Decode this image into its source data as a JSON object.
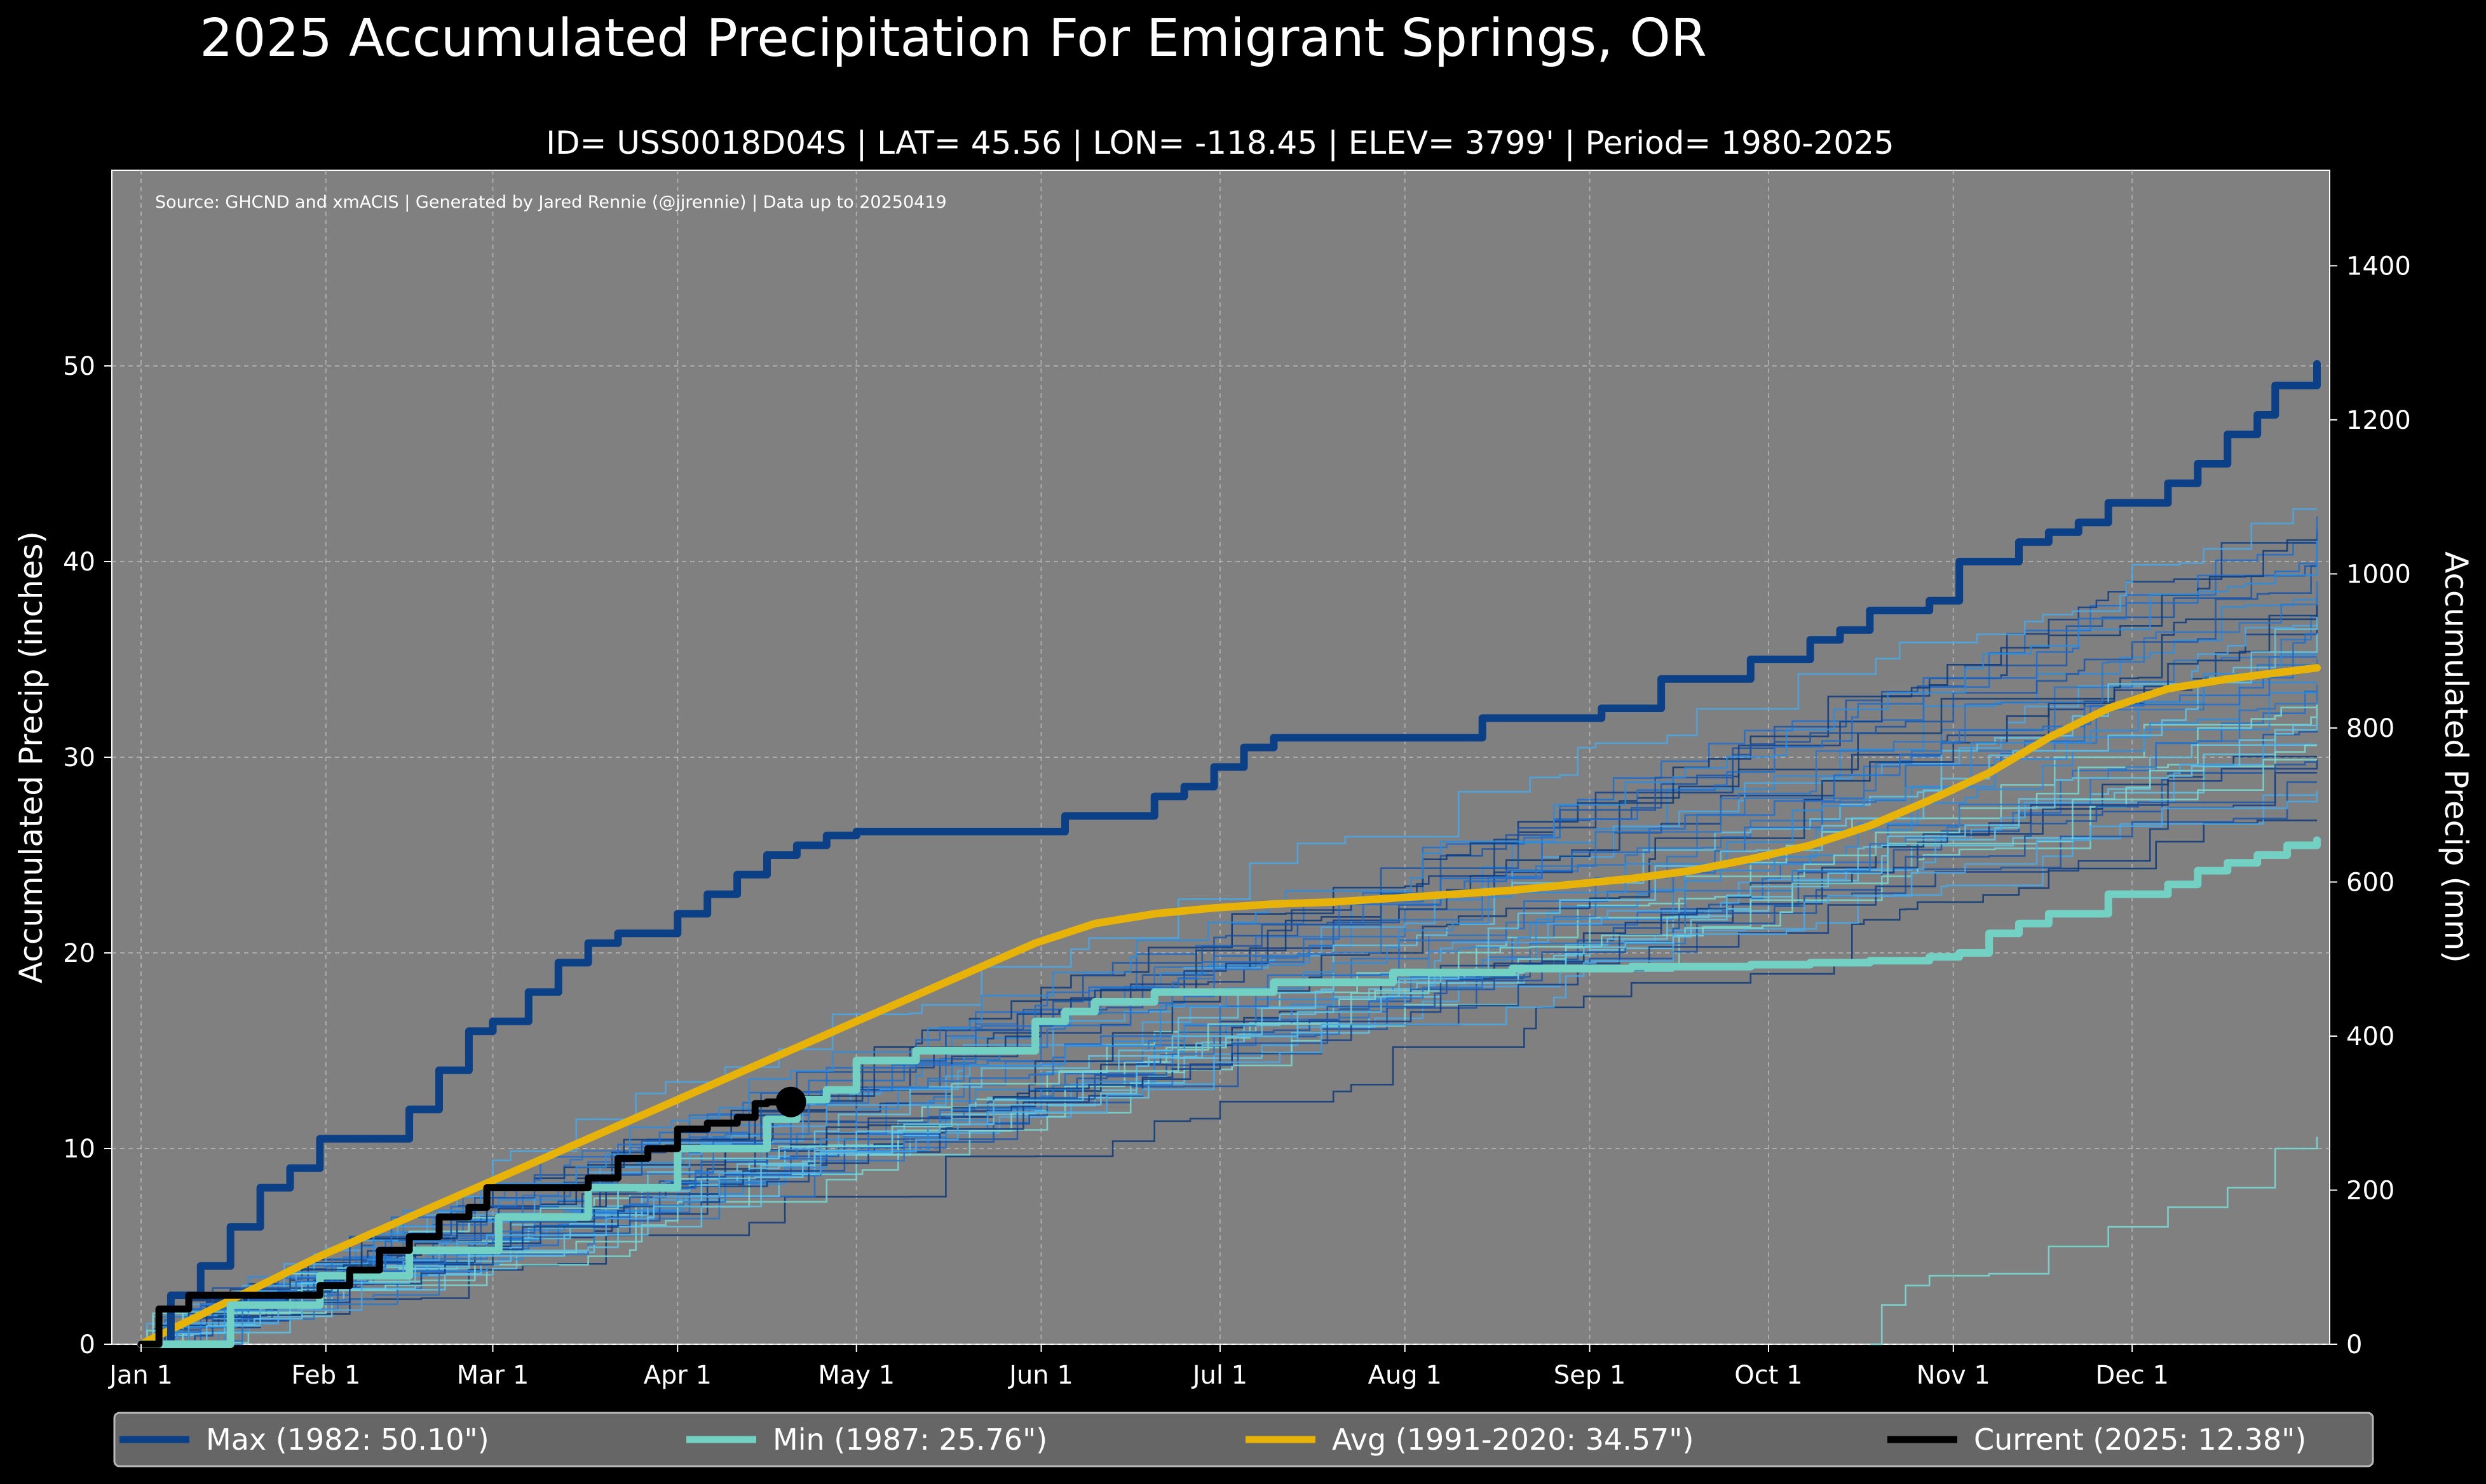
{
  "chart_data": {
    "type": "line",
    "title": "2025 Accumulated Precipitation For Emigrant Springs, OR",
    "subtitle": "ID= USS0018D04S | LAT= 45.56 | LON= -118.45 | ELEV= 3799' | Period= 1980-2025",
    "source_note": "Source: GHCND and xmACIS | Generated by Jared Rennie (@jjrennie) | Data up to 20250419",
    "ylabel": "Accumulated Precip (inches)",
    "ylabel_right": "Accumulated Precip (mm)",
    "ylim": [
      0,
      60
    ],
    "ylim_right_mm": [
      0,
      1524
    ],
    "xlim_day": [
      0,
      365
    ],
    "grid": true,
    "x_ticks": [
      {
        "label": "Jan 1",
        "day": 0
      },
      {
        "label": "Feb 1",
        "day": 31
      },
      {
        "label": "Mar 1",
        "day": 59
      },
      {
        "label": "Apr 1",
        "day": 90
      },
      {
        "label": "May 1",
        "day": 120
      },
      {
        "label": "Jun 1",
        "day": 151
      },
      {
        "label": "Jul 1",
        "day": 181
      },
      {
        "label": "Aug 1",
        "day": 212
      },
      {
        "label": "Sep 1",
        "day": 243
      },
      {
        "label": "Oct 1",
        "day": 273
      },
      {
        "label": "Nov 1",
        "day": 304
      },
      {
        "label": "Dec 1",
        "day": 334
      }
    ],
    "y_ticks": [
      0,
      10,
      20,
      30,
      40,
      50
    ],
    "y_ticks_right": [
      0,
      200,
      400,
      600,
      800,
      1000,
      1200,
      1400
    ],
    "series": [
      {
        "name": "Max (1982:  50.10\")",
        "role": "max",
        "color": "#0b3f86",
        "x": [
          0,
          5,
          10,
          15,
          20,
          25,
          30,
          35,
          40,
          45,
          50,
          55,
          59,
          65,
          70,
          75,
          80,
          85,
          90,
          95,
          100,
          105,
          110,
          115,
          120,
          125,
          130,
          140,
          150,
          155,
          165,
          170,
          175,
          180,
          185,
          190,
          200,
          210,
          220,
          225,
          235,
          245,
          250,
          255,
          260,
          265,
          270,
          275,
          280,
          285,
          290,
          295,
          300,
          305,
          310,
          315,
          320,
          325,
          330,
          335,
          340,
          345,
          350,
          355,
          358,
          365
        ],
        "y": [
          0,
          2.5,
          4,
          6,
          8,
          9,
          10.5,
          10.5,
          10.5,
          12,
          14,
          16,
          16.5,
          18,
          19.5,
          20.5,
          21,
          21,
          22,
          23,
          24,
          25,
          25.5,
          26,
          26.2,
          26.2,
          26.2,
          26.2,
          26.2,
          27,
          27,
          28,
          28.5,
          29.5,
          30.5,
          31,
          31,
          31,
          31,
          32,
          32,
          32.5,
          32.5,
          34,
          34,
          34,
          35,
          35,
          36,
          36.5,
          37.5,
          37.5,
          38,
          40,
          40,
          41,
          41.5,
          42,
          43,
          43,
          44,
          45,
          46.5,
          47.5,
          49,
          50.1
        ]
      },
      {
        "name": "Min (1987:  25.76\")",
        "role": "min",
        "color": "#72d1c3",
        "x": [
          0,
          15,
          30,
          45,
          60,
          75,
          90,
          105,
          110,
          115,
          120,
          130,
          140,
          150,
          155,
          160,
          165,
          170,
          180,
          190,
          200,
          210,
          220,
          230,
          240,
          250,
          260,
          270,
          280,
          290,
          300,
          305,
          310,
          315,
          320,
          330,
          340,
          345,
          350,
          355,
          360,
          365
        ],
        "y": [
          0,
          2,
          3.5,
          4.8,
          6.5,
          8,
          10,
          11.5,
          12.5,
          13,
          14.5,
          15,
          15,
          16.5,
          17,
          17.5,
          17.5,
          18,
          18,
          18.5,
          18.5,
          19,
          19,
          19.2,
          19.2,
          19.3,
          19.3,
          19.4,
          19.5,
          19.6,
          19.8,
          20,
          21,
          21.5,
          22,
          23,
          23.5,
          24.2,
          24.6,
          25,
          25.5,
          25.76
        ]
      },
      {
        "name": "Avg (1991-2020:  34.57\")",
        "role": "avg",
        "color": "#e8b308",
        "x": [
          0,
          30,
          60,
          90,
          120,
          150,
          160,
          170,
          180,
          190,
          200,
          210,
          220,
          230,
          240,
          250,
          260,
          270,
          280,
          290,
          300,
          310,
          320,
          330,
          340,
          350,
          365
        ],
        "y": [
          0,
          4.5,
          8.5,
          12.5,
          16.5,
          20.5,
          21.5,
          22,
          22.3,
          22.5,
          22.6,
          22.8,
          23,
          23.2,
          23.5,
          23.8,
          24.2,
          24.8,
          25.5,
          26.5,
          27.8,
          29.2,
          31,
          32.5,
          33.5,
          34,
          34.57
        ]
      },
      {
        "name": "Current (2025:  12.38\")",
        "role": "current",
        "color": "#000000",
        "x": [
          0,
          3,
          8,
          14,
          20,
          26,
          30,
          35,
          40,
          45,
          50,
          55,
          58,
          60,
          65,
          70,
          75,
          80,
          85,
          90,
          95,
          100,
          103,
          105,
          109
        ],
        "y": [
          0,
          1.8,
          2.5,
          2.5,
          2.5,
          2.5,
          3,
          3.8,
          4.8,
          5.5,
          6.5,
          7,
          8,
          8,
          8,
          8,
          8.5,
          9.5,
          10,
          11,
          11.3,
          11.6,
          12.3,
          12.38,
          12.38
        ]
      }
    ],
    "legend": {
      "placement": "bottom",
      "entries": [
        "Max (1982:  50.10\")",
        "Min (1987:  25.76\")",
        "Avg (1991-2020:  34.57\")",
        "Current (2025:  12.38\")"
      ]
    }
  }
}
